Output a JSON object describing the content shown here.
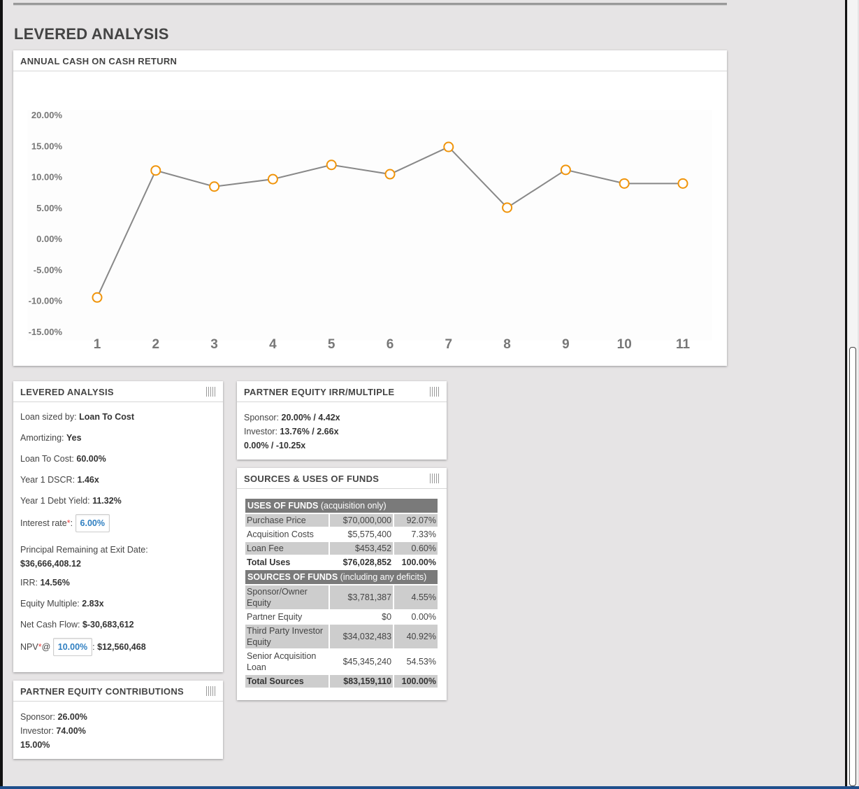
{
  "page": {
    "section_title": "LEVERED ANALYSIS"
  },
  "chart_card": {
    "header": "ANNUAL CASH ON CASH RETURN"
  },
  "chart_data": {
    "type": "line",
    "title": "ANNUAL CASH ON CASH RETURN",
    "xlabel": "",
    "ylabel": "",
    "categories": [
      "1",
      "2",
      "3",
      "4",
      "5",
      "6",
      "7",
      "8",
      "9",
      "10",
      "11"
    ],
    "values": [
      -9.5,
      11.0,
      8.4,
      9.6,
      11.9,
      10.4,
      14.8,
      5.0,
      11.1,
      8.9,
      8.9
    ],
    "ylim": [
      -15,
      20
    ],
    "y_ticks": [
      "20.00%",
      "15.00%",
      "10.00%",
      "5.00%",
      "0.00%",
      "-5.00%",
      "-10.00%",
      "-15.00%"
    ],
    "y_tick_values": [
      20,
      15,
      10,
      5,
      0,
      -5,
      -10,
      -15
    ],
    "line_color": "#888888",
    "marker_color": "#f0940a",
    "grid": false
  },
  "levered": {
    "header": "LEVERED ANALYSIS",
    "loan_sized_label": "Loan sized by:",
    "loan_sized_value": "Loan To Cost",
    "amortizing_label": "Amortizing:",
    "amortizing_value": "Yes",
    "ltc_label": "Loan To Cost:",
    "ltc_value": "60.00%",
    "dscr_label": "Year 1 DSCR:",
    "dscr_value": "1.46x",
    "debt_yield_label": "Year 1 Debt Yield:",
    "debt_yield_value": "11.32%",
    "interest_label": "Interest rate",
    "interest_req": "*",
    "interest_colon": ":",
    "interest_value": "6.00%",
    "principal_label": "Principal Remaining at Exit Date:",
    "principal_value": "$36,666,408.12",
    "irr_label": "IRR:",
    "irr_value": "14.56%",
    "equity_multiple_label": "Equity Multiple:",
    "equity_multiple_value": "2.83x",
    "net_cash_flow_label": "Net Cash Flow:",
    "net_cash_flow_value": "$-30,683,612",
    "npv_label": "NPV",
    "npv_req": "*",
    "npv_at": "@",
    "npv_rate": "10.00%",
    "npv_colon": ":",
    "npv_value": "$12,560,468"
  },
  "contributions": {
    "header": "PARTNER EQUITY CONTRIBUTIONS",
    "sponsor_label": "Sponsor:",
    "sponsor_value": "26.00%",
    "investor_label": "Investor:",
    "investor_value": "74.00%",
    "other_value": "15.00%"
  },
  "irr_multiple": {
    "header": "PARTNER EQUITY IRR/MULTIPLE",
    "sponsor_label": "Sponsor:",
    "sponsor_value": "20.00% / 4.42x",
    "investor_label": "Investor:",
    "investor_value": "13.76% / 2.66x",
    "other_value": "0.00% / -10.25x"
  },
  "sources_uses": {
    "header": "SOURCES & USES OF FUNDS",
    "uses_title": "USES OF FUNDS",
    "uses_note": "(acquisition only)",
    "uses": [
      {
        "label": "Purchase Price",
        "amount": "$70,000,000",
        "pct": "92.07%"
      },
      {
        "label": "Acquisition Costs",
        "amount": "$5,575,400",
        "pct": "7.33%"
      },
      {
        "label": "Loan Fee",
        "amount": "$453,452",
        "pct": "0.60%"
      }
    ],
    "uses_total": {
      "label": "Total Uses",
      "amount": "$76,028,852",
      "pct": "100.00%"
    },
    "sources_title": "SOURCES OF FUNDS",
    "sources_note": "(including any deficits)",
    "sources": [
      {
        "label": "Sponsor/Owner Equity",
        "amount": "$3,781,387",
        "pct": "4.55%"
      },
      {
        "label": "Partner Equity",
        "amount": "$0",
        "pct": "0.00%"
      },
      {
        "label": "Third Party Investor Equity",
        "amount": "$34,032,483",
        "pct": "40.92%"
      },
      {
        "label": "Senior Acquisition Loan",
        "amount": "$45,345,240",
        "pct": "54.53%"
      }
    ],
    "sources_total": {
      "label": "Total Sources",
      "amount": "$83,159,110",
      "pct": "100.00%"
    }
  }
}
